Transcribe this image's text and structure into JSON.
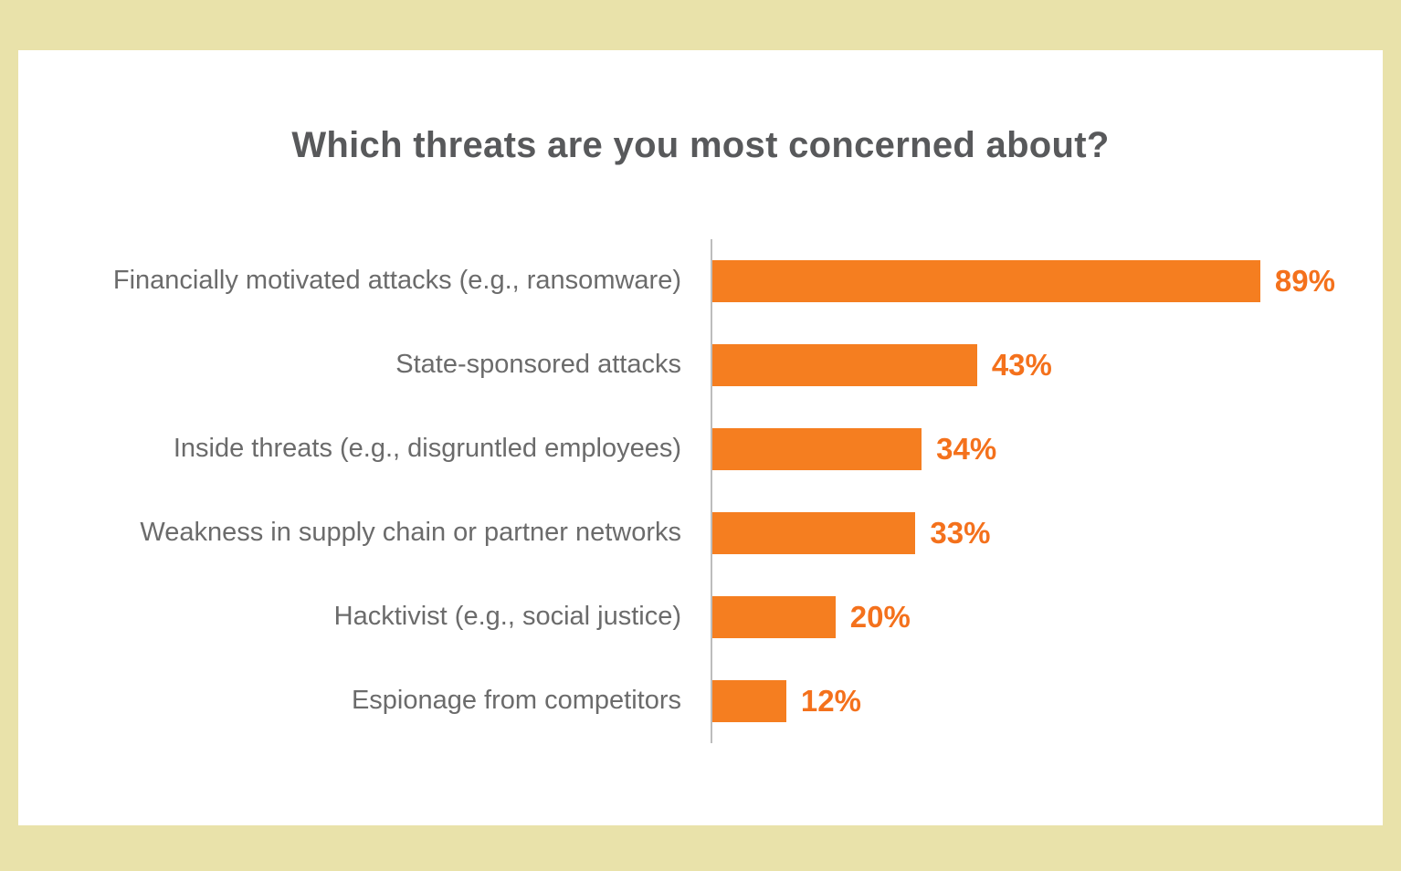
{
  "page": {
    "background_color": "#e9e2aa",
    "card_background": "#ffffff"
  },
  "chart_data": {
    "type": "bar",
    "orientation": "horizontal",
    "title": "Which threats are you most concerned about?",
    "categories": [
      "Financially motivated attacks (e.g., ransomware)",
      "State-sponsored attacks",
      "Inside threats (e.g., disgruntled employees)",
      "Weakness in supply chain or partner networks",
      "Hacktivist (e.g., social justice)",
      "Espionage from competitors"
    ],
    "values": [
      89,
      43,
      34,
      33,
      20,
      12
    ],
    "value_suffix": "%",
    "xlim": [
      0,
      100
    ],
    "grid": false,
    "legend": false,
    "bar_color": "#f57e20",
    "value_label_color": "#f4711c",
    "category_label_color": "#6b6b6b",
    "title_color": "#58595b",
    "axis_line_color": "#bdbdbd"
  }
}
